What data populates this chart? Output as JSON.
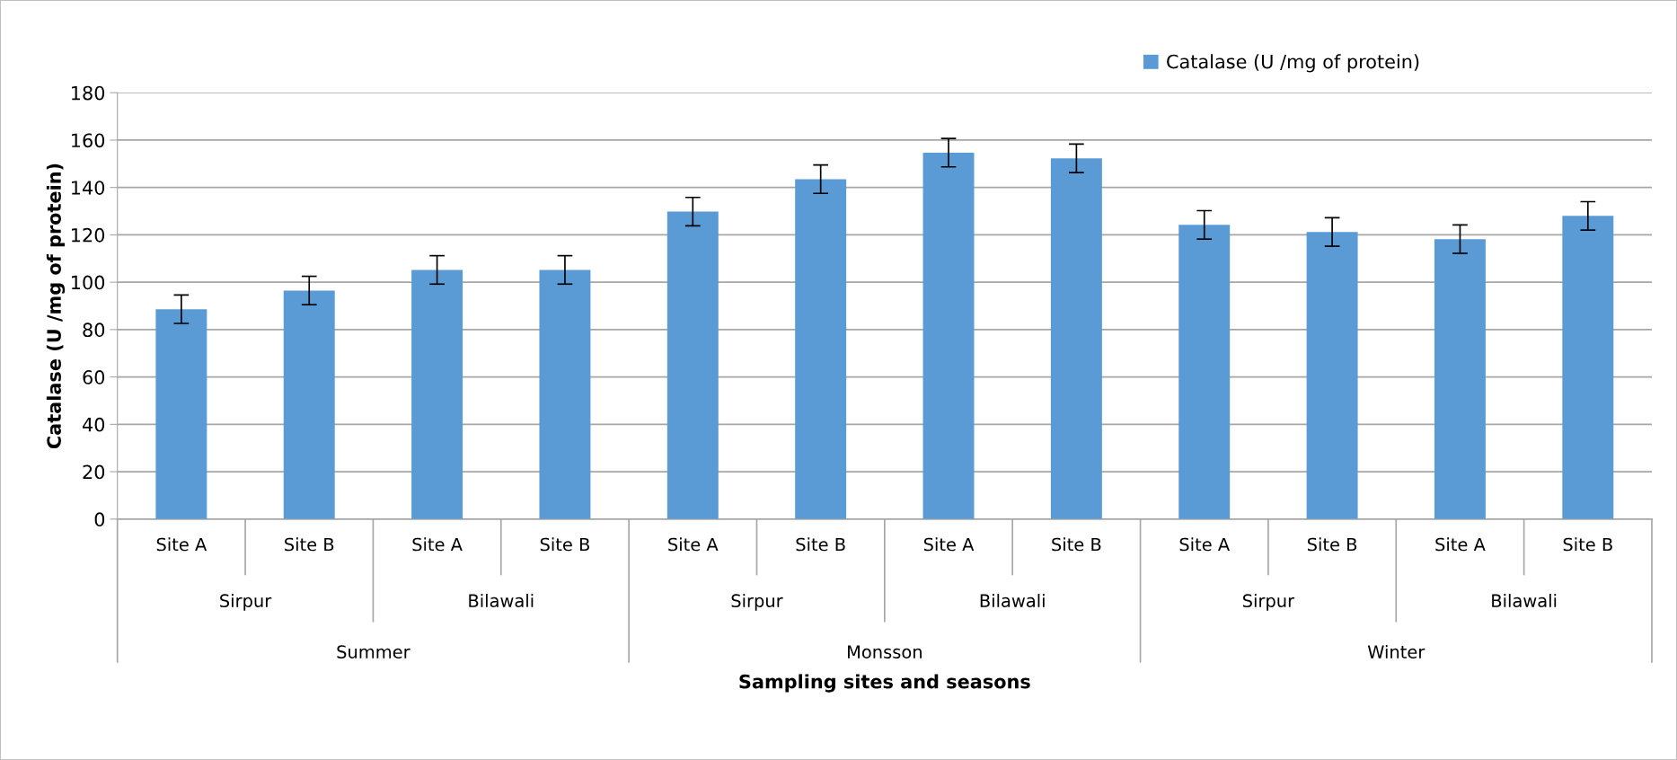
{
  "chart_data": {
    "type": "bar",
    "ylabel": "Catalase (U /mg of protein)",
    "categories": [
      "Site A",
      "Site B",
      "Site A",
      "Site B",
      "Site A",
      "Site B",
      "Site A",
      "Site B",
      "Site A",
      "Site B",
      "Site A",
      "Site B"
    ],
    "series": [
      {
        "name": "Catalase (U /mg of protein)",
        "color": "#5b9bd5",
        "values": [
          88.6,
          96.5,
          105.2,
          105.2,
          129.8,
          143.5,
          154.7,
          152.3,
          124.2,
          121.2,
          118.2,
          128.0
        ],
        "errors": [
          6,
          6,
          6,
          6,
          6,
          6,
          6,
          6,
          6,
          6,
          6,
          6
        ]
      }
    ],
    "annotations": [
      "Sirpur",
      "Bilawali",
      "Sirpur",
      "Bilawali",
      "Sirpur",
      "Bilawali",
      "Summer",
      "Monsson",
      "Winter",
      "Sampling sites and seasons"
    ],
    "ylim": [
      0,
      180
    ],
    "yticks": [
      0,
      20,
      40,
      60,
      80,
      100,
      120,
      140,
      160,
      180
    ],
    "grid": "y",
    "legend": "top right"
  }
}
